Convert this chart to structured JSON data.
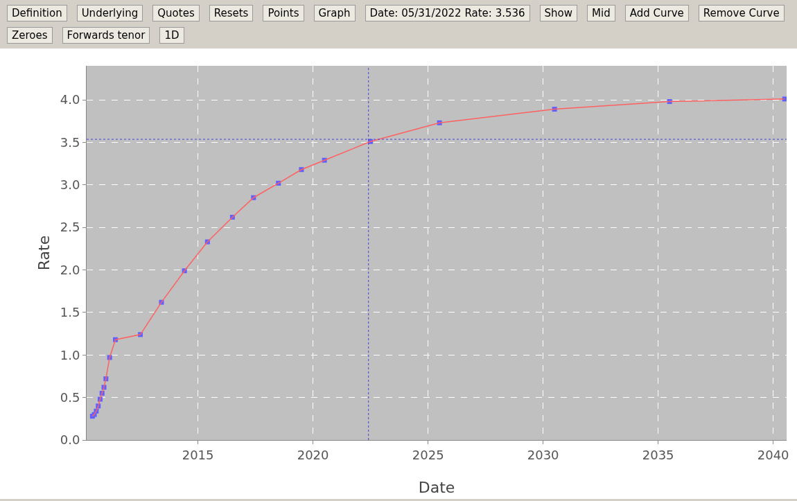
{
  "chart_data": {
    "type": "line",
    "xlabel": "Date",
    "ylabel": "Rate",
    "annotations": [
      "Definition",
      "Underlying",
      "Quotes",
      "Resets",
      "Points",
      "Graph",
      "Date: 05/31/2022 Rate: 3.536",
      "Show",
      "Mid",
      "Add Curve",
      "Remove Curve",
      "Zeroes",
      "Forwards tenor",
      "1D"
    ],
    "series": [
      {
        "color": "#ff6060",
        "marker": "none",
        "line_style": "solid",
        "x": [
          "2010-06",
          "2010-07",
          "2010-08",
          "2010-09",
          "2010-10",
          "2010-11",
          "2010-12",
          "2011-01",
          "2011-03",
          "2011-06",
          "2012-07",
          "2013-06",
          "2014-06",
          "2015-06",
          "2016-07",
          "2017-06",
          "2018-07",
          "2019-07",
          "2020-07",
          "2022-07",
          "2025-07",
          "2030-07",
          "2035-07",
          "2040-07"
        ],
        "values": [
          0.28,
          0.3,
          0.34,
          0.4,
          0.48,
          0.55,
          0.62,
          0.72,
          0.97,
          1.18,
          1.24,
          1.62,
          1.99,
          2.33,
          2.62,
          2.85,
          3.02,
          3.18,
          3.29,
          3.51,
          3.73,
          3.89,
          3.98,
          4.01
        ]
      },
      {
        "type": "scatter",
        "color": "#6060ff",
        "marker": "square",
        "x": [
          "2010-06",
          "2010-07",
          "2010-08",
          "2010-09",
          "2010-10",
          "2010-11",
          "2010-12",
          "2011-01",
          "2011-03",
          "2011-06",
          "2012-07",
          "2013-06",
          "2014-06",
          "2015-06",
          "2016-07",
          "2017-06",
          "2018-07",
          "2019-07",
          "2020-07",
          "2022-07",
          "2025-07",
          "2030-07",
          "2035-07",
          "2040-07"
        ],
        "values": [
          0.28,
          0.3,
          0.34,
          0.4,
          0.48,
          0.55,
          0.62,
          0.72,
          0.97,
          1.18,
          1.24,
          1.62,
          1.99,
          2.33,
          2.62,
          2.85,
          3.02,
          3.18,
          3.29,
          3.51,
          3.73,
          3.89,
          3.98,
          4.01
        ]
      }
    ],
    "xlim": [
      "2010-03",
      "2040-08"
    ],
    "xticks": [
      "2015",
      "2020",
      "2025",
      "2030",
      "2035",
      "2040"
    ],
    "ylim": [
      0,
      4.4
    ],
    "yticks": [
      {
        "value": 0,
        "label": "0.0"
      },
      {
        "value": 0.5,
        "label": "0.5"
      },
      {
        "value": 1,
        "label": "1.0"
      },
      {
        "value": 1.5,
        "label": "1.5"
      },
      {
        "value": 2,
        "label": "2.0"
      },
      {
        "value": 2.5,
        "label": "2.5"
      },
      {
        "value": 3,
        "label": "3.0"
      },
      {
        "value": 3.5,
        "label": "3.5"
      },
      {
        "value": 4,
        "label": "4.0"
      }
    ],
    "grid": true,
    "ref_lines": [
      {
        "axis": "x",
        "value": "2022-05-31",
        "color": "#4040e0",
        "line_style": "dotted"
      },
      {
        "axis": "y",
        "value": 3.536,
        "color": "#4040e0",
        "line_style": "dotted"
      }
    ]
  }
}
